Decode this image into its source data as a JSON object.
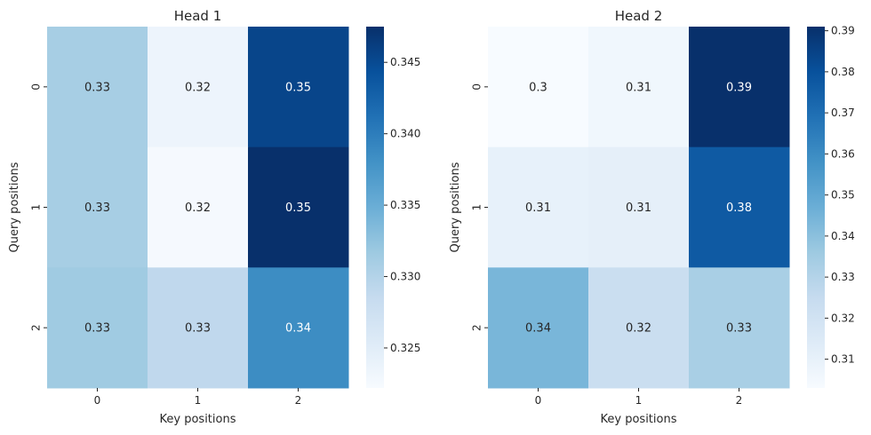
{
  "chart_data": [
    {
      "type": "heatmap",
      "title": "Head 1",
      "xlabel": "Key positions",
      "ylabel": "Query positions",
      "x_categories": [
        "0",
        "1",
        "2"
      ],
      "y_categories": [
        "0",
        "1",
        "2"
      ],
      "values": [
        [
          0.331,
          0.3235,
          0.3455
        ],
        [
          0.331,
          0.3225,
          0.3475
        ],
        [
          0.3315,
          0.329,
          0.3385
        ]
      ],
      "annotations": [
        [
          "0.33",
          "0.32",
          "0.35"
        ],
        [
          "0.33",
          "0.32",
          "0.35"
        ],
        [
          "0.33",
          "0.33",
          "0.34"
        ]
      ],
      "colorbar": {
        "min": 0.3222,
        "max": 0.3475,
        "ticks": [
          0.325,
          0.33,
          0.335,
          0.34,
          0.345
        ],
        "tick_labels": [
          "0.325",
          "0.330",
          "0.335",
          "0.340",
          "0.345"
        ]
      },
      "colormap": "Blues"
    },
    {
      "type": "heatmap",
      "title": "Head 2",
      "xlabel": "Key positions",
      "ylabel": "Query positions",
      "x_categories": [
        "0",
        "1",
        "2"
      ],
      "y_categories": [
        "0",
        "1",
        "2"
      ],
      "values": [
        [
          0.303,
          0.306,
          0.391
        ],
        [
          0.31,
          0.311,
          0.377
        ],
        [
          0.344,
          0.323,
          0.333
        ]
      ],
      "annotations": [
        [
          "0.3",
          "0.31",
          "0.39"
        ],
        [
          "0.31",
          "0.31",
          "0.38"
        ],
        [
          "0.34",
          "0.32",
          "0.33"
        ]
      ],
      "colorbar": {
        "min": 0.303,
        "max": 0.391,
        "ticks": [
          0.31,
          0.32,
          0.33,
          0.34,
          0.35,
          0.36,
          0.37,
          0.38,
          0.39
        ],
        "tick_labels": [
          "0.31",
          "0.32",
          "0.33",
          "0.34",
          "0.35",
          "0.36",
          "0.37",
          "0.38",
          "0.39"
        ]
      },
      "colormap": "Blues"
    }
  ]
}
